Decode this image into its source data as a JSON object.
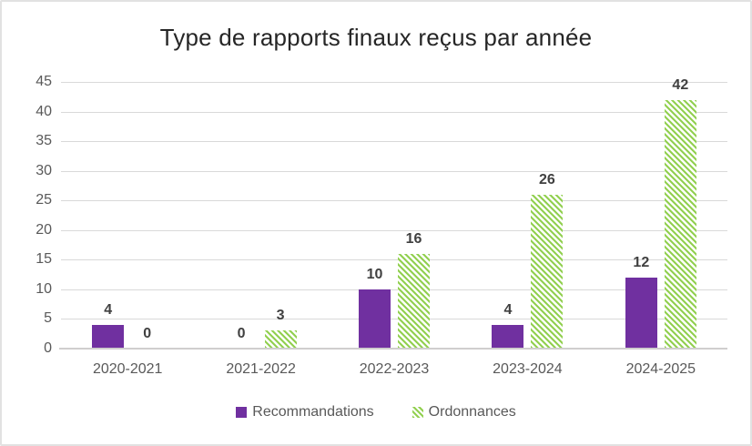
{
  "chart_data": {
    "type": "bar",
    "title": "Type de rapports finaux reçus par année",
    "categories": [
      "2020-2021",
      "2021-2022",
      "2022-2023",
      "2023-2024",
      "2024-2025"
    ],
    "series": [
      {
        "name": "Recommandations",
        "values": [
          4,
          0,
          10,
          4,
          12
        ],
        "color": "#7030a0",
        "pattern": "solid"
      },
      {
        "name": "Ordonnances",
        "values": [
          0,
          3,
          16,
          26,
          42
        ],
        "color": "#92d050",
        "pattern": "diagonal-hatch"
      }
    ],
    "ylim": [
      0,
      45
    ],
    "yticks": [
      0,
      5,
      10,
      15,
      20,
      25,
      30,
      35,
      40,
      45
    ],
    "grid": "horizontal",
    "legend_position": "bottom",
    "data_labels": true
  },
  "colors": {
    "background": "#ffffff",
    "frame_border": "#e2e2e2",
    "gridline": "#d9d9d9",
    "axis_line": "#d0cece",
    "tick_label": "#595959",
    "data_label": "#404040",
    "title": "#262626",
    "series_recommandations": "#7030a0",
    "series_ordonnances": "#92d050"
  }
}
